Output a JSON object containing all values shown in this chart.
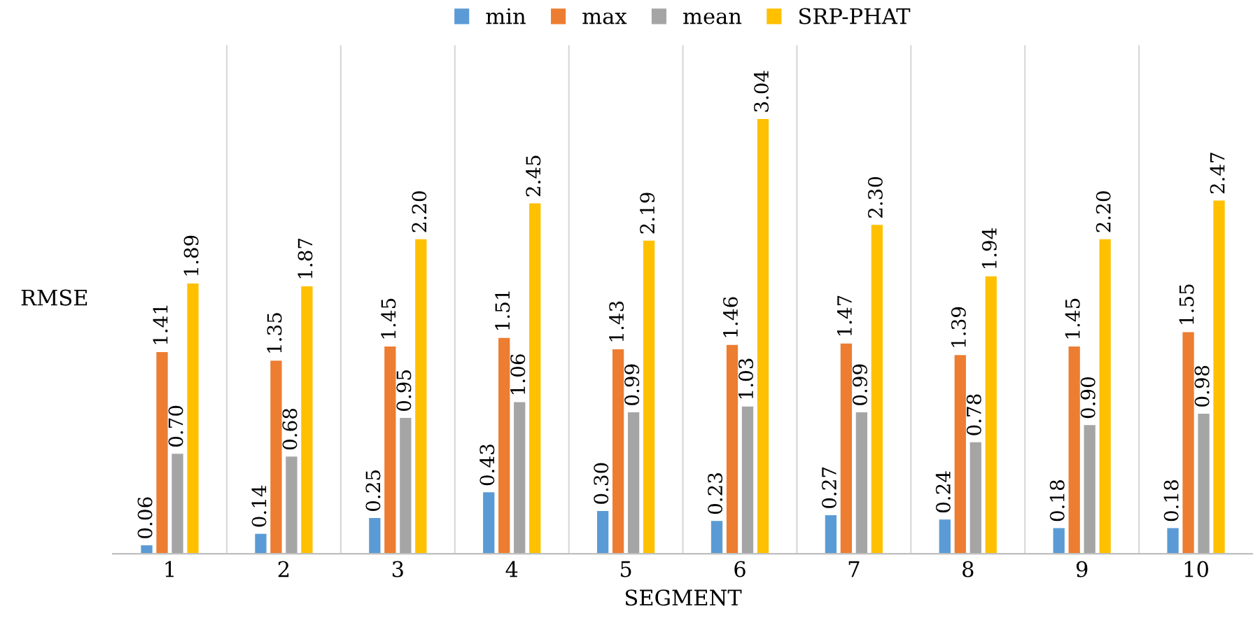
{
  "chart_data": {
    "type": "bar",
    "xlabel": "SEGMENT",
    "ylabel": "RMSE",
    "categories": [
      "1",
      "2",
      "3",
      "4",
      "5",
      "6",
      "7",
      "8",
      "9",
      "10"
    ],
    "series": [
      {
        "name": "min",
        "color": "#5b9bd5",
        "values": [
          0.06,
          0.14,
          0.25,
          0.43,
          0.3,
          0.23,
          0.27,
          0.24,
          0.18,
          0.18
        ],
        "value_labels": [
          "0.06",
          "0.14",
          "0.25",
          "0.43",
          "0.30",
          "0.23",
          "0.27",
          "0.24",
          "0.18",
          "0.18"
        ]
      },
      {
        "name": "max",
        "color": "#ed7d31",
        "values": [
          1.41,
          1.35,
          1.45,
          1.51,
          1.43,
          1.46,
          1.47,
          1.39,
          1.45,
          1.55
        ],
        "value_labels": [
          "1.41",
          "1.35",
          "1.45",
          "1.51",
          "1.43",
          "1.46",
          "1.47",
          "1.39",
          "1.45",
          "1.55"
        ]
      },
      {
        "name": "mean",
        "color": "#a5a5a5",
        "values": [
          0.7,
          0.68,
          0.95,
          1.06,
          0.99,
          1.03,
          0.99,
          0.78,
          0.9,
          0.98
        ],
        "value_labels": [
          "0.70",
          "0.68",
          "0.95",
          "1.06",
          "0.99",
          "1.03",
          "0.99",
          "0.78",
          "0.90",
          "0.98"
        ]
      },
      {
        "name": "SRP-PHAT",
        "color": "#ffc000",
        "values": [
          1.89,
          1.87,
          2.2,
          2.45,
          2.19,
          3.04,
          2.3,
          1.94,
          2.2,
          2.47
        ],
        "value_labels": [
          "1.89",
          "1.87",
          "2.20",
          "2.45",
          "2.19",
          "3.04",
          "2.30",
          "1.94",
          "2.20",
          "2.47"
        ]
      }
    ],
    "legend": "top",
    "grid": "x"
  }
}
